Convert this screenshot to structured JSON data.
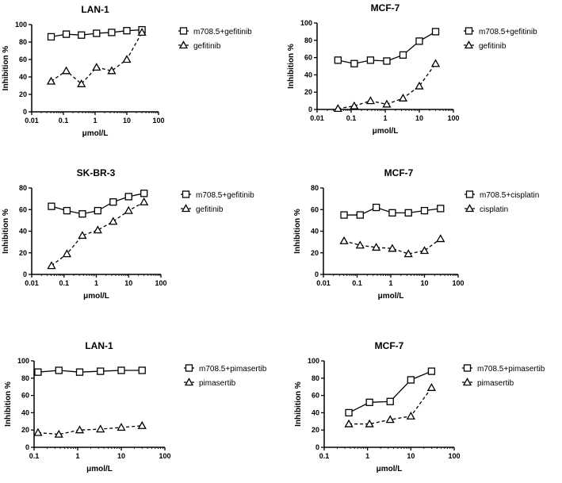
{
  "chart_data": [
    {
      "type": "line",
      "title": "LAN-1",
      "xlabel": "μmol/L",
      "ylabel": "Inhibition %",
      "xscale": "log",
      "xlim": [
        0.01,
        100
      ],
      "ylim": [
        0,
        100
      ],
      "xticks": [
        "0.01",
        "0.1",
        "1",
        "10",
        "100"
      ],
      "yticks": [
        "0",
        "20",
        "40",
        "60",
        "80",
        "100"
      ],
      "legend": "right",
      "grid": false,
      "series": [
        {
          "name": "m708.5+gefitinib",
          "marker": "square",
          "line": "solid",
          "x": [
            0.041,
            0.123,
            0.37,
            1.11,
            3.33,
            10,
            30
          ],
          "y": [
            86,
            89,
            88,
            90,
            91,
            93,
            94
          ]
        },
        {
          "name": "gefitinib",
          "marker": "triangle",
          "line": "dashed",
          "x": [
            0.041,
            0.123,
            0.37,
            1.11,
            3.33,
            10,
            30
          ],
          "y": [
            35,
            47,
            32,
            51,
            47,
            60,
            91
          ]
        }
      ]
    },
    {
      "type": "line",
      "title": "MCF-7",
      "xlabel": "μmol/L",
      "ylabel": "Inhibition %",
      "xscale": "log",
      "xlim": [
        0.01,
        100
      ],
      "ylim": [
        0,
        100
      ],
      "xticks": [
        "0.01",
        "0.1",
        "1",
        "10",
        "100"
      ],
      "yticks": [
        "0",
        "20",
        "40",
        "60",
        "80",
        "100"
      ],
      "legend": "right",
      "grid": false,
      "series": [
        {
          "name": "m708.5+gefitinib",
          "marker": "square",
          "line": "solid",
          "x": [
            0.041,
            0.123,
            0.37,
            1.11,
            3.33,
            10,
            30
          ],
          "y": [
            57,
            53,
            57,
            56,
            63,
            79,
            90
          ]
        },
        {
          "name": "gefitinib",
          "marker": "triangle",
          "line": "dashed",
          "x": [
            0.041,
            0.123,
            0.37,
            1.11,
            3.33,
            10,
            30
          ],
          "y": [
            1,
            4,
            10,
            6,
            13,
            27,
            53
          ]
        }
      ]
    },
    {
      "type": "line",
      "title": "SK-BR-3",
      "xlabel": "μmol/L",
      "ylabel": "Inhibition %",
      "xscale": "log",
      "xlim": [
        0.01,
        100
      ],
      "ylim": [
        0,
        80
      ],
      "xticks": [
        "0.01",
        "0.1",
        "1",
        "10",
        "100"
      ],
      "yticks": [
        "0",
        "20",
        "40",
        "60",
        "80"
      ],
      "legend": "right",
      "grid": false,
      "series": [
        {
          "name": "m708.5+gefitinib",
          "marker": "square",
          "line": "solid",
          "x": [
            0.041,
            0.123,
            0.37,
            1.11,
            3.33,
            10,
            30
          ],
          "y": [
            63,
            59,
            56,
            59,
            67,
            72,
            75
          ]
        },
        {
          "name": "gefitinib",
          "marker": "triangle",
          "line": "dashed",
          "x": [
            0.041,
            0.123,
            0.37,
            1.11,
            3.33,
            10,
            30
          ],
          "y": [
            8,
            19,
            36,
            41,
            49,
            59,
            67
          ]
        }
      ]
    },
    {
      "type": "line",
      "title": "MCF-7",
      "xlabel": "μmol/L",
      "ylabel": "Inhibition %",
      "xscale": "log",
      "xlim": [
        0.01,
        100
      ],
      "ylim": [
        0,
        80
      ],
      "xticks": [
        "0.01",
        "0.1",
        "1",
        "10",
        "100"
      ],
      "yticks": [
        "0",
        "20",
        "40",
        "60",
        "80"
      ],
      "legend": "right",
      "grid": false,
      "series": [
        {
          "name": "m708.5+cisplatin",
          "marker": "square",
          "line": "solid",
          "x": [
            0.041,
            0.123,
            0.37,
            1.11,
            3.33,
            10,
            30
          ],
          "y": [
            55,
            55,
            62,
            57,
            57,
            59,
            61
          ]
        },
        {
          "name": "cisplatin",
          "marker": "triangle",
          "line": "dashed",
          "x": [
            0.041,
            0.123,
            0.37,
            1.11,
            3.33,
            10,
            30
          ],
          "y": [
            31,
            27,
            25,
            24,
            19,
            22,
            33
          ]
        }
      ]
    },
    {
      "type": "line",
      "title": "LAN-1",
      "xlabel": "μmol/L",
      "ylabel": "Inhibition %",
      "xscale": "log",
      "xlim": [
        0.1,
        100
      ],
      "ylim": [
        0,
        100
      ],
      "xticks": [
        "0.1",
        "1",
        "10",
        "100"
      ],
      "yticks": [
        "0",
        "20",
        "40",
        "60",
        "80",
        "100"
      ],
      "legend": "right",
      "grid": false,
      "series": [
        {
          "name": "m708.5+pimasertib",
          "marker": "square",
          "line": "solid",
          "x": [
            0.123,
            0.37,
            1.11,
            3.33,
            10,
            30
          ],
          "y": [
            87,
            89,
            87,
            88,
            89,
            89
          ]
        },
        {
          "name": "pimasertib",
          "marker": "triangle",
          "line": "dashed",
          "x": [
            0.123,
            0.37,
            1.11,
            3.33,
            10,
            30
          ],
          "y": [
            17,
            15,
            20,
            21,
            23,
            25
          ]
        }
      ]
    },
    {
      "type": "line",
      "title": "MCF-7",
      "xlabel": "μmol/L",
      "ylabel": "Inhibition %",
      "xscale": "log",
      "xlim": [
        0.1,
        100
      ],
      "ylim": [
        0,
        100
      ],
      "xticks": [
        "0.1",
        "1",
        "10",
        "100"
      ],
      "yticks": [
        "0",
        "20",
        "40",
        "60",
        "80",
        "100"
      ],
      "legend": "right",
      "grid": false,
      "series": [
        {
          "name": "m708.5+pimasertib",
          "marker": "square",
          "line": "solid",
          "x": [
            0.37,
            1.11,
            3.33,
            10,
            30
          ],
          "y": [
            40,
            52,
            53,
            78,
            88
          ]
        },
        {
          "name": "pimasertib",
          "marker": "triangle",
          "line": "dashed",
          "x": [
            0.37,
            1.11,
            3.33,
            10,
            30
          ],
          "y": [
            27,
            27,
            32,
            36,
            69
          ]
        }
      ]
    }
  ]
}
